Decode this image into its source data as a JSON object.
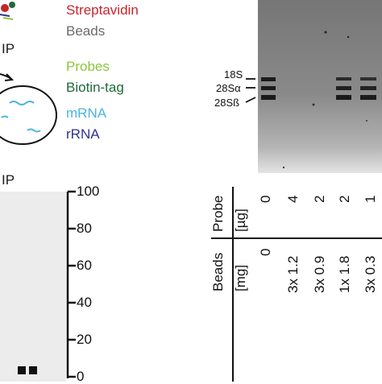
{
  "legend": {
    "items": [
      {
        "label": "Streptavidin",
        "color": "#c8232c"
      },
      {
        "label": "Beads",
        "color": "#6b6b6b"
      },
      {
        "label": "Probes",
        "color": "#8cc63e"
      },
      {
        "label": "Biotin-tag",
        "color": "#1e6b3a"
      },
      {
        "label": "mRNA",
        "color": "#4bb4de"
      },
      {
        "label": "rRNA",
        "color": "#2e3192"
      }
    ]
  },
  "ip_labels": {
    "top": "IP",
    "bottom": "IP"
  },
  "gel": {
    "rna_labels": [
      "18S",
      "28Sα",
      "28Sß"
    ],
    "row_headers": {
      "probe": {
        "line1": "Probe",
        "line2": "[µg]"
      },
      "beads": {
        "line1": "Beads",
        "line2": "[mg]"
      }
    },
    "probe_values": [
      "0",
      "4",
      "2",
      "2",
      "1"
    ],
    "beads_values": [
      "0",
      "3x 1.2",
      "3x 0.9",
      "1x 1.8",
      "3x 0.3"
    ]
  },
  "axis": {
    "ticks": [
      "100",
      "80",
      "60",
      "40",
      "20",
      "0"
    ]
  }
}
